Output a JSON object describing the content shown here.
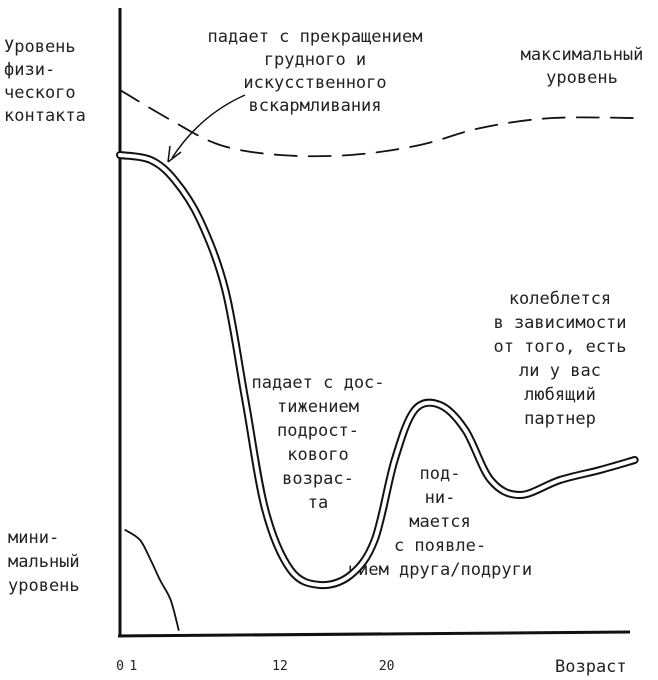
{
  "chart_data": {
    "type": "line",
    "ylabel": [
      "Уровень",
      "физи-",
      "ческого",
      "контакта"
    ],
    "xlabel": "Возраст",
    "xlim": [
      0,
      39
    ],
    "ylim": [
      0,
      100
    ],
    "xticks": [
      0,
      1,
      12,
      20
    ],
    "series": [
      {
        "name": "максимальный уровень",
        "color": "#111",
        "dashed": true,
        "x": [
          0,
          3.8,
          7.5,
          12,
          17.3,
          22.5,
          27,
          32.3,
          39
        ],
        "values": [
          87.2,
          82.4,
          78.4,
          76.8,
          76.8,
          78.4,
          81.1,
          82.7,
          82.7
        ]
      },
      {
        "name": "уровень",
        "color": "#111",
        "double": true,
        "x": [
          0,
          2.3,
          4.1,
          6,
          7.9,
          9.4,
          10.9,
          12.8,
          15,
          17.3,
          19.1,
          20.6,
          22.1,
          24,
          25.9,
          27.8,
          30,
          33,
          36,
          38.6
        ],
        "values": [
          76.8,
          76,
          72.8,
          66.4,
          55.2,
          37.6,
          20,
          10.4,
          8,
          9.6,
          15.2,
          28,
          36,
          36.8,
          32.8,
          24.8,
          22.4,
          24.8,
          26.4,
          28
        ]
      },
      {
        "name": "минимальный уровень",
        "color": "#111",
        "x": [
          0.4,
          1.5,
          2.3,
          3,
          3.8,
          4.4
        ],
        "values": [
          16.8,
          15.2,
          12,
          8.8,
          5.6,
          0.8
        ]
      }
    ],
    "annotations": [
      [
        "падает с прекращением",
        "грудного и",
        "искусственного",
        "вскармливания"
      ],
      [
        "максимальный",
        "уровень"
      ],
      [
        "мини-",
        "мальный",
        "уровень"
      ],
      [
        "падает с дос-",
        "тижением",
        "подрост-",
        "кового",
        "возрас-",
        "та"
      ],
      [
        "колеблется",
        "в зависимости",
        "от того, есть",
        "ли у вас",
        "любящий",
        "партнер"
      ],
      [
        "под-",
        "ни-",
        "мается",
        "с появле-",
        "нием друга/подруги"
      ]
    ]
  }
}
